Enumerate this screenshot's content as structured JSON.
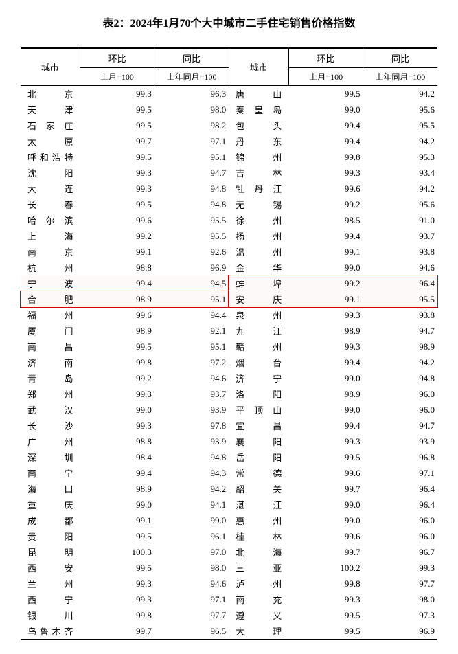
{
  "title": "表2：2024年1月70个大中城市二手住宅销售价格指数",
  "headers": {
    "city": "城市",
    "mom": "环比",
    "yoy": "同比",
    "mom_sub": "上月=100",
    "yoy_sub": "上年同月=100"
  },
  "highlight": {
    "left_city": "合肥",
    "right_city1": "蚌埠",
    "right_city2": "安庆",
    "color": "#d00000"
  },
  "rows": [
    {
      "l": [
        "北京",
        "99.3",
        "96.3"
      ],
      "r": [
        "唐山",
        "99.5",
        "94.2"
      ]
    },
    {
      "l": [
        "天津",
        "99.5",
        "98.0"
      ],
      "r": [
        "秦皇岛",
        "99.0",
        "95.6"
      ]
    },
    {
      "l": [
        "石家庄",
        "99.5",
        "98.2"
      ],
      "r": [
        "包头",
        "99.4",
        "95.5"
      ]
    },
    {
      "l": [
        "太原",
        "99.7",
        "97.1"
      ],
      "r": [
        "丹东",
        "99.4",
        "94.2"
      ]
    },
    {
      "l": [
        "呼和浩特",
        "99.5",
        "95.1"
      ],
      "r": [
        "锦州",
        "99.8",
        "95.3"
      ]
    },
    {
      "l": [
        "沈阳",
        "99.3",
        "94.7"
      ],
      "r": [
        "吉林",
        "99.3",
        "93.4"
      ]
    },
    {
      "l": [
        "大连",
        "99.3",
        "94.8"
      ],
      "r": [
        "牡丹江",
        "99.6",
        "94.2"
      ]
    },
    {
      "l": [
        "长春",
        "99.5",
        "94.8"
      ],
      "r": [
        "无锡",
        "99.2",
        "95.6"
      ]
    },
    {
      "l": [
        "哈尔滨",
        "99.6",
        "95.5"
      ],
      "r": [
        "徐州",
        "98.5",
        "91.0"
      ]
    },
    {
      "l": [
        "上海",
        "99.2",
        "95.5"
      ],
      "r": [
        "扬州",
        "99.4",
        "93.7"
      ]
    },
    {
      "l": [
        "南京",
        "99.1",
        "92.6"
      ],
      "r": [
        "温州",
        "99.1",
        "93.8"
      ]
    },
    {
      "l": [
        "杭州",
        "98.8",
        "96.9"
      ],
      "r": [
        "金华",
        "99.0",
        "94.6"
      ]
    },
    {
      "l": [
        "宁波",
        "99.4",
        "94.5"
      ],
      "r": [
        "蚌埠",
        "99.2",
        "96.4"
      ],
      "hlR": true
    },
    {
      "l": [
        "合肥",
        "98.9",
        "95.1"
      ],
      "r": [
        "安庆",
        "99.1",
        "95.5"
      ],
      "hlL": true,
      "hlR": true
    },
    {
      "l": [
        "福州",
        "99.6",
        "94.4"
      ],
      "r": [
        "泉州",
        "99.3",
        "93.8"
      ]
    },
    {
      "l": [
        "厦门",
        "98.9",
        "92.1"
      ],
      "r": [
        "九江",
        "98.9",
        "94.7"
      ]
    },
    {
      "l": [
        "南昌",
        "99.5",
        "95.1"
      ],
      "r": [
        "赣州",
        "99.3",
        "98.9"
      ]
    },
    {
      "l": [
        "济南",
        "99.8",
        "97.2"
      ],
      "r": [
        "烟台",
        "99.4",
        "94.2"
      ]
    },
    {
      "l": [
        "青岛",
        "99.2",
        "94.6"
      ],
      "r": [
        "济宁",
        "99.0",
        "94.8"
      ]
    },
    {
      "l": [
        "郑州",
        "99.3",
        "93.7"
      ],
      "r": [
        "洛阳",
        "98.9",
        "96.0"
      ]
    },
    {
      "l": [
        "武汉",
        "99.0",
        "93.9"
      ],
      "r": [
        "平顶山",
        "99.0",
        "96.0"
      ]
    },
    {
      "l": [
        "长沙",
        "99.3",
        "97.8"
      ],
      "r": [
        "宜昌",
        "99.4",
        "94.7"
      ]
    },
    {
      "l": [
        "广州",
        "98.8",
        "93.9"
      ],
      "r": [
        "襄阳",
        "99.3",
        "93.9"
      ]
    },
    {
      "l": [
        "深圳",
        "98.4",
        "94.8"
      ],
      "r": [
        "岳阳",
        "99.5",
        "96.8"
      ]
    },
    {
      "l": [
        "南宁",
        "99.4",
        "94.3"
      ],
      "r": [
        "常德",
        "99.6",
        "97.1"
      ]
    },
    {
      "l": [
        "海口",
        "98.9",
        "94.2"
      ],
      "r": [
        "韶关",
        "99.7",
        "96.4"
      ]
    },
    {
      "l": [
        "重庆",
        "99.0",
        "94.1"
      ],
      "r": [
        "湛江",
        "99.0",
        "96.4"
      ]
    },
    {
      "l": [
        "成都",
        "99.1",
        "99.0"
      ],
      "r": [
        "惠州",
        "99.0",
        "96.0"
      ]
    },
    {
      "l": [
        "贵阳",
        "99.5",
        "96.1"
      ],
      "r": [
        "桂林",
        "99.6",
        "96.0"
      ]
    },
    {
      "l": [
        "昆明",
        "100.3",
        "97.0"
      ],
      "r": [
        "北海",
        "99.7",
        "96.7"
      ]
    },
    {
      "l": [
        "西安",
        "99.5",
        "98.0"
      ],
      "r": [
        "三亚",
        "100.2",
        "99.3"
      ]
    },
    {
      "l": [
        "兰州",
        "99.3",
        "94.6"
      ],
      "r": [
        "泸州",
        "99.8",
        "97.7"
      ]
    },
    {
      "l": [
        "西宁",
        "99.3",
        "97.1"
      ],
      "r": [
        "南充",
        "99.3",
        "98.0"
      ]
    },
    {
      "l": [
        "银川",
        "99.8",
        "97.7"
      ],
      "r": [
        "遵义",
        "99.5",
        "97.3"
      ]
    },
    {
      "l": [
        "乌鲁木齐",
        "99.7",
        "96.5"
      ],
      "r": [
        "大理",
        "99.5",
        "96.9"
      ]
    }
  ]
}
